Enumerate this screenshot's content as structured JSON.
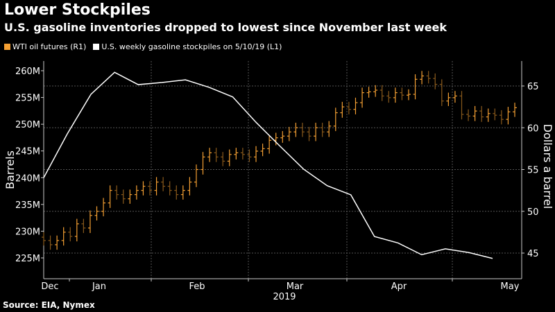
{
  "title": "Lower Stockpiles",
  "subtitle": "U.S. gasoline inventories dropped to lowest since November last week",
  "source": "Source: EIA, Nymex",
  "chart_data": {
    "type": "line",
    "legend_position": "top-left",
    "grid": true,
    "x_ticks": [
      "Dec",
      "Jan",
      "Feb",
      "Mar",
      "Apr",
      "May"
    ],
    "x_year_label": "2019",
    "left_axis": {
      "label": "Barrels",
      "range": [
        222,
        263
      ],
      "ticks": [
        225,
        230,
        235,
        240,
        245,
        250,
        255,
        260
      ],
      "tick_labels": [
        "225M",
        "230M",
        "235M",
        "240M",
        "245M",
        "250M",
        "255M",
        "260M"
      ]
    },
    "right_axis": {
      "label": "Dollars a barrel",
      "range": [
        42.5,
        68.5
      ],
      "ticks": [
        45,
        50,
        55,
        60,
        65
      ],
      "tick_labels": [
        "45",
        "50",
        "55",
        "60",
        "65"
      ]
    },
    "series": [
      {
        "name": "WTI oil futures (R1)",
        "axis": "right",
        "style": "ohlc",
        "color": "#f5a033",
        "close": [
          46.5,
          46.0,
          46.5,
          47.5,
          47.0,
          48.5,
          48.0,
          49.5,
          50.0,
          51.0,
          52.5,
          52.0,
          51.5,
          52.0,
          52.5,
          53.0,
          52.5,
          53.5,
          53.0,
          52.5,
          52.0,
          52.5,
          53.5,
          55.0,
          56.5,
          57.0,
          56.5,
          56.0,
          56.8,
          57.0,
          56.8,
          56.5,
          57.2,
          57.5,
          58.5,
          58.8,
          59.0,
          59.5,
          60.0,
          59.5,
          59.0,
          60.0,
          59.5,
          60.2,
          61.8,
          62.5,
          62.2,
          63.0,
          64.2,
          64.3,
          64.5,
          63.8,
          63.6,
          64.2,
          63.9,
          64.0,
          65.8,
          66.2,
          65.9,
          65.2,
          63.2,
          63.6,
          63.8,
          61.6,
          61.4,
          62.0,
          61.3,
          61.7,
          61.5,
          61.0,
          61.9,
          62.4
        ]
      },
      {
        "name": "U.S. weekly gasoline stockpiles on 5/10/19 (L1)",
        "axis": "left",
        "style": "line",
        "color": "#ffffff",
        "values": [
          240.0,
          248.2,
          255.6,
          259.7,
          257.4,
          257.8,
          258.3,
          256.9,
          255.1,
          250.3,
          245.9,
          241.6,
          238.5,
          236.8,
          229.0,
          227.8,
          225.6,
          226.7,
          226.0,
          224.9
        ]
      }
    ]
  }
}
